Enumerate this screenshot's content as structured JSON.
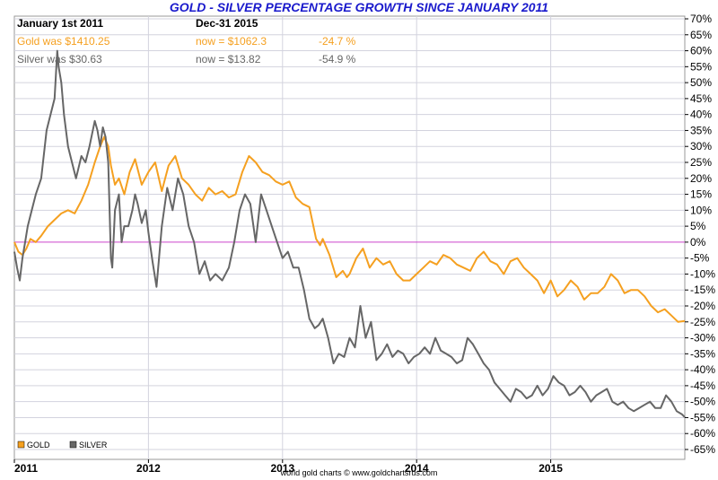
{
  "chart_data": {
    "type": "line",
    "title": "GOLD - SILVER PERCENTAGE GROWTH SINCE JANUARY 2011",
    "ylim": [
      -65,
      70
    ],
    "ytick_step": 5,
    "y_ticks_labels": [
      "70%",
      "65%",
      "60%",
      "55%",
      "50%",
      "45%",
      "40%",
      "35%",
      "30%",
      "25%",
      "20%",
      "15%",
      "10%",
      "5%",
      "0%",
      "-5%",
      "-10%",
      "-15%",
      "-20%",
      "-25%",
      "-30%",
      "-35%",
      "-40%",
      "-45%",
      "-50%",
      "-55%",
      "-60%",
      "-65%"
    ],
    "x_tick_labels": [
      "2011",
      "2012",
      "2013",
      "2014",
      "2015"
    ],
    "xlim": [
      2011.0,
      2016.0
    ],
    "grid": true,
    "zero_line": true,
    "header": {
      "start_label": "January 1st 2011",
      "end_label": "Dec-31  2015",
      "gold_start": "Gold was $1410.25",
      "gold_now": "now = $1062.3",
      "gold_change": "-24.7 %",
      "silver_start": "Silver was $30.63",
      "silver_now": "now = $13.82",
      "silver_change": "-54.9 %"
    },
    "legend_placement": "bottom-left",
    "credit": "world gold charts © www.goldchartsrus.com",
    "series": [
      {
        "name": "GOLD",
        "color": "#f5a020",
        "x": [
          2011.0,
          2011.03,
          2011.06,
          2011.09,
          2011.12,
          2011.16,
          2011.2,
          2011.25,
          2011.3,
          2011.35,
          2011.4,
          2011.45,
          2011.5,
          2011.55,
          2011.6,
          2011.64,
          2011.67,
          2011.7,
          2011.72,
          2011.75,
          2011.78,
          2011.82,
          2011.86,
          2011.9,
          2011.95,
          2012.0,
          2012.05,
          2012.1,
          2012.15,
          2012.2,
          2012.25,
          2012.3,
          2012.35,
          2012.4,
          2012.45,
          2012.5,
          2012.55,
          2012.6,
          2012.65,
          2012.7,
          2012.75,
          2012.8,
          2012.85,
          2012.9,
          2012.95,
          2013.0,
          2013.05,
          2013.1,
          2013.15,
          2013.2,
          2013.25,
          2013.28,
          2013.3,
          2013.35,
          2013.4,
          2013.45,
          2013.48,
          2013.5,
          2013.55,
          2013.6,
          2013.65,
          2013.7,
          2013.75,
          2013.8,
          2013.85,
          2013.9,
          2013.95,
          2014.0,
          2014.05,
          2014.1,
          2014.15,
          2014.2,
          2014.25,
          2014.3,
          2014.35,
          2014.4,
          2014.45,
          2014.5,
          2014.55,
          2014.6,
          2014.65,
          2014.7,
          2014.75,
          2014.8,
          2014.85,
          2014.9,
          2014.95,
          2015.0,
          2015.05,
          2015.1,
          2015.15,
          2015.2,
          2015.25,
          2015.3,
          2015.35,
          2015.4,
          2015.45,
          2015.5,
          2015.55,
          2015.6,
          2015.65,
          2015.7,
          2015.75,
          2015.8,
          2015.85,
          2015.9,
          2015.95,
          2016.0
        ],
        "values": [
          0,
          -3,
          -4,
          -2,
          1,
          0,
          2,
          5,
          7,
          9,
          10,
          9,
          13,
          18,
          25,
          30,
          33,
          30,
          24,
          18,
          20,
          15,
          22,
          26,
          18,
          22,
          25,
          16,
          24,
          27,
          20,
          18,
          15,
          13,
          17,
          15,
          16,
          14,
          15,
          22,
          27,
          25,
          22,
          21,
          19,
          18,
          19,
          14,
          12,
          11,
          1,
          -1,
          1,
          -4,
          -11,
          -9,
          -11,
          -10,
          -5,
          -2,
          -8,
          -5,
          -7,
          -6,
          -10,
          -12,
          -12,
          -10,
          -8,
          -6,
          -7,
          -4,
          -5,
          -7,
          -8,
          -9,
          -5,
          -3,
          -6,
          -7,
          -10,
          -6,
          -5,
          -8,
          -10,
          -12,
          -16,
          -12,
          -17,
          -15,
          -12,
          -14,
          -18,
          -16,
          -16,
          -14,
          -10,
          -12,
          -16,
          -15,
          -15,
          -17,
          -20,
          -22,
          -21,
          -23,
          -25,
          -24.7
        ]
      },
      {
        "name": "SILVER",
        "color": "#666666",
        "x": [
          2011.0,
          2011.02,
          2011.04,
          2011.06,
          2011.08,
          2011.1,
          2011.13,
          2011.16,
          2011.2,
          2011.24,
          2011.27,
          2011.3,
          2011.32,
          2011.33,
          2011.35,
          2011.37,
          2011.4,
          2011.43,
          2011.46,
          2011.5,
          2011.53,
          2011.56,
          2011.6,
          2011.62,
          2011.64,
          2011.66,
          2011.68,
          2011.7,
          2011.72,
          2011.73,
          2011.75,
          2011.78,
          2011.8,
          2011.82,
          2011.85,
          2011.88,
          2011.9,
          2011.92,
          2011.95,
          2011.98,
          2012.0,
          2012.03,
          2012.06,
          2012.1,
          2012.14,
          2012.18,
          2012.22,
          2012.26,
          2012.3,
          2012.34,
          2012.38,
          2012.42,
          2012.46,
          2012.5,
          2012.55,
          2012.6,
          2012.64,
          2012.68,
          2012.72,
          2012.76,
          2012.8,
          2012.84,
          2012.88,
          2012.92,
          2012.96,
          2013.0,
          2013.04,
          2013.08,
          2013.12,
          2013.16,
          2013.2,
          2013.24,
          2013.27,
          2013.3,
          2013.34,
          2013.38,
          2013.42,
          2013.46,
          2013.5,
          2013.54,
          2013.58,
          2013.62,
          2013.66,
          2013.7,
          2013.74,
          2013.78,
          2013.82,
          2013.86,
          2013.9,
          2013.94,
          2013.98,
          2014.02,
          2014.06,
          2014.1,
          2014.14,
          2014.18,
          2014.22,
          2014.26,
          2014.3,
          2014.34,
          2014.38,
          2014.42,
          2014.46,
          2014.5,
          2014.54,
          2014.58,
          2014.62,
          2014.66,
          2014.7,
          2014.74,
          2014.78,
          2014.82,
          2014.86,
          2014.9,
          2014.94,
          2014.98,
          2015.02,
          2015.06,
          2015.1,
          2015.14,
          2015.18,
          2015.22,
          2015.26,
          2015.3,
          2015.34,
          2015.38,
          2015.42,
          2015.46,
          2015.5,
          2015.54,
          2015.58,
          2015.62,
          2015.66,
          2015.7,
          2015.74,
          2015.78,
          2015.82,
          2015.86,
          2015.9,
          2015.94,
          2015.98,
          2016.0
        ],
        "values": [
          -3,
          -8,
          -12,
          -5,
          0,
          5,
          10,
          15,
          20,
          35,
          40,
          45,
          60,
          55,
          50,
          40,
          30,
          25,
          20,
          27,
          25,
          30,
          38,
          35,
          30,
          36,
          33,
          25,
          -5,
          -8,
          10,
          15,
          0,
          5,
          5,
          10,
          15,
          12,
          6,
          10,
          3,
          -6,
          -14,
          5,
          17,
          10,
          20,
          15,
          5,
          0,
          -10,
          -6,
          -12,
          -10,
          -12,
          -8,
          0,
          10,
          15,
          12,
          0,
          15,
          10,
          5,
          0,
          -5,
          -3,
          -8,
          -8,
          -15,
          -24,
          -27,
          -26,
          -24,
          -30,
          -38,
          -35,
          -36,
          -30,
          -33,
          -20,
          -30,
          -25,
          -37,
          -35,
          -32,
          -36,
          -34,
          -35,
          -38,
          -36,
          -35,
          -33,
          -35,
          -30,
          -34,
          -35,
          -36,
          -38,
          -37,
          -30,
          -32,
          -35,
          -38,
          -40,
          -44,
          -46,
          -48,
          -50,
          -46,
          -47,
          -49,
          -48,
          -45,
          -48,
          -46,
          -42,
          -44,
          -45,
          -48,
          -47,
          -45,
          -47,
          -50,
          -48,
          -47,
          -46,
          -50,
          -51,
          -50,
          -52,
          -53,
          -52,
          -51,
          -50,
          -52,
          -52,
          -48,
          -50,
          -53,
          -54,
          -54.9
        ]
      }
    ]
  }
}
